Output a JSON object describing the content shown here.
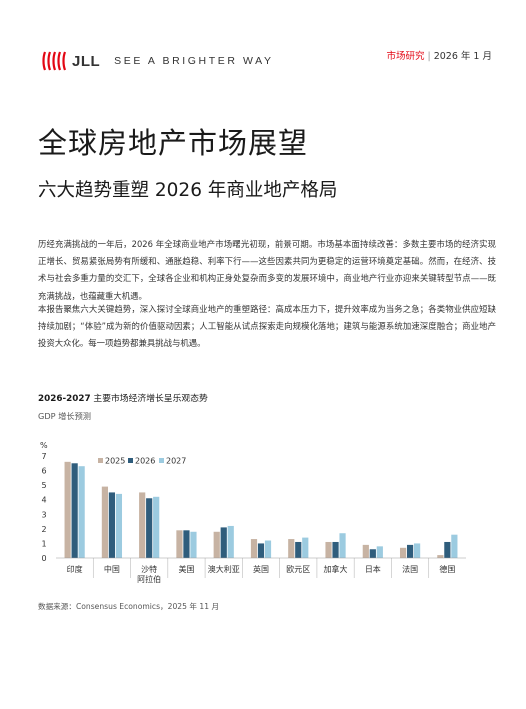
{
  "header": {
    "brand": "JLL",
    "tagline": "SEE A BRIGHTER WAY",
    "category": "市场研究",
    "separator": "|",
    "date": "2026 年 1 月",
    "brand_color": "#e30613"
  },
  "title": "全球房地产市场展望",
  "subtitle": "六大趋势重塑 2026 年商业地产格局",
  "paragraphs": [
    "历经充满挑战的一年后，2026 年全球商业地产市场曙光初现，前景可期。市场基本面持续改善：多数主要市场的经济实现正增长、贸易紧张局势有所缓和、通胀趋稳、利率下行——这些因素共同为更稳定的运营环境奠定基础。然而，在经济、技术与社会多重力量的交汇下，全球各企业和机构正身处复杂而多变的发展环境中，商业地产行业亦迎来关键转型节点——既充满挑战，也蕴藏重大机遇。",
    "本报告聚焦六大关键趋势，深入探讨全球商业地产的重塑路径：高成本压力下，提升效率成为当务之急；各类物业供应短缺持续加剧；“体验”成为新的价值驱动因素；人工智能从试点探索走向规模化落地；建筑与能源系统加速深度融合；商业地产投资大众化。每一项趋势都兼具挑战与机遇。"
  ],
  "chart": {
    "title_bold": "2026-2027",
    "title_rest": " 主要市场经济增长呈乐观态势",
    "subtitle": "GDP 增长预测",
    "source": "数据来源：Consensus Economics，2025 年 11 月"
  },
  "chart_data": {
    "type": "bar",
    "ylabel": "%",
    "ylim": [
      0,
      7
    ],
    "yticks": [
      "0",
      "1",
      "2",
      "3",
      "4",
      "5",
      "6",
      "7"
    ],
    "categories": [
      "印度",
      "中国",
      "沙特阿拉伯",
      "美国",
      "澳大利亚",
      "英国",
      "欧元区",
      "加拿大",
      "日本",
      "法国",
      "德国"
    ],
    "category_lines": [
      [
        "印度"
      ],
      [
        "中国"
      ],
      [
        "沙特",
        "阿拉伯"
      ],
      [
        "美国"
      ],
      [
        "澳大利亚"
      ],
      [
        "英国"
      ],
      [
        "欧元区"
      ],
      [
        "加拿大"
      ],
      [
        "日本"
      ],
      [
        "法国"
      ],
      [
        "德国"
      ]
    ],
    "series": [
      {
        "name": "2025",
        "color": "#c7b3a3",
        "values": [
          6.6,
          4.9,
          4.5,
          1.9,
          1.8,
          1.3,
          1.3,
          1.1,
          0.9,
          0.7,
          0.2
        ]
      },
      {
        "name": "2026",
        "color": "#2f5d7c",
        "values": [
          6.5,
          4.5,
          4.1,
          1.9,
          2.1,
          1.0,
          1.1,
          1.1,
          0.6,
          0.9,
          1.1
        ]
      },
      {
        "name": "2027",
        "color": "#9ccbe0",
        "values": [
          6.3,
          4.4,
          4.2,
          1.8,
          2.2,
          1.2,
          1.4,
          1.7,
          0.8,
          1.0,
          1.6
        ]
      }
    ],
    "legend_position": "top"
  }
}
